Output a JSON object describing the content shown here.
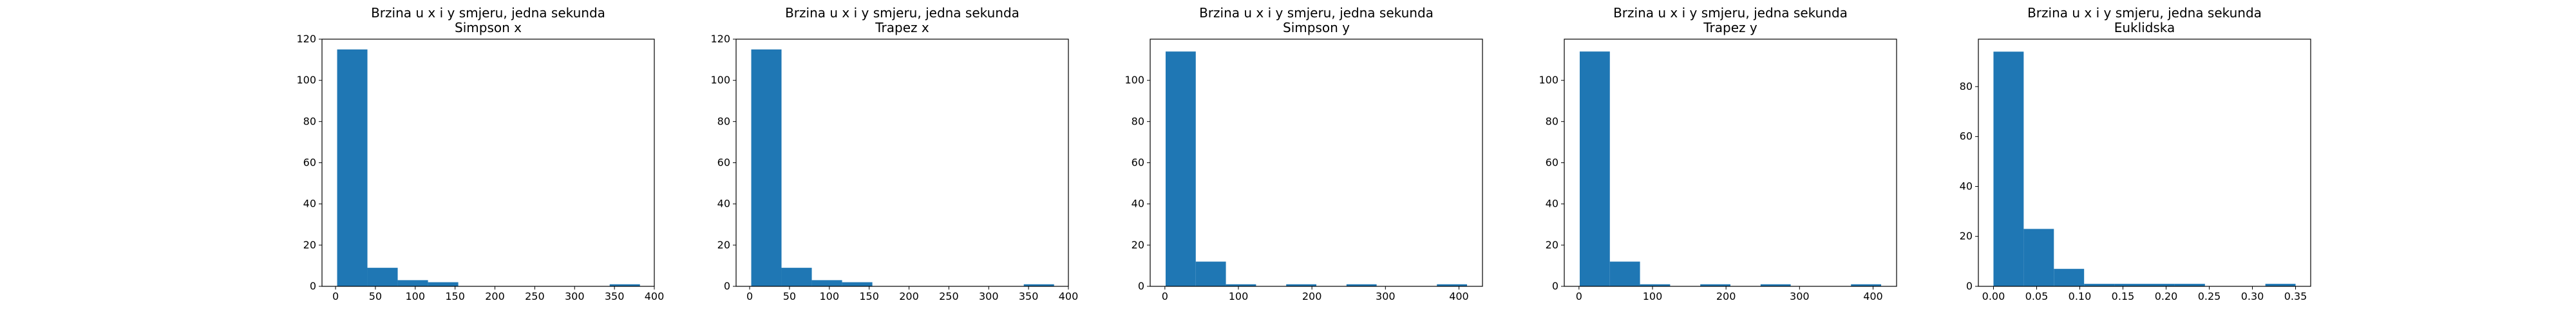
{
  "chart_data": [
    {
      "type": "bar",
      "subtype": "histogram",
      "title": "Brzina u x i y smjeru, jedna sekunda",
      "subtitle": "Simpson x",
      "bin_edges": [
        2,
        40,
        78,
        116,
        154,
        192,
        230,
        268,
        306,
        344,
        382
      ],
      "values": [
        115,
        9,
        3,
        2,
        0,
        0,
        0,
        0,
        0,
        1
      ],
      "xlim": [
        -17,
        400
      ],
      "ylim": [
        0,
        120
      ],
      "xticks": [
        0,
        50,
        100,
        150,
        200,
        250,
        300,
        350,
        400
      ],
      "yticks": [
        0,
        20,
        40,
        60,
        80,
        100,
        120
      ],
      "color": "#1f77b4",
      "grid": false
    },
    {
      "type": "bar",
      "subtype": "histogram",
      "title": "Brzina u x i y smjeru, jedna sekunda",
      "subtitle": "Trapez x",
      "bin_edges": [
        2,
        40,
        78,
        116,
        154,
        192,
        230,
        268,
        306,
        344,
        382
      ],
      "values": [
        115,
        9,
        3,
        2,
        0,
        0,
        0,
        0,
        0,
        1
      ],
      "xlim": [
        -17,
        400
      ],
      "ylim": [
        0,
        120
      ],
      "xticks": [
        0,
        50,
        100,
        150,
        200,
        250,
        300,
        350,
        400
      ],
      "yticks": [
        0,
        20,
        40,
        60,
        80,
        100,
        120
      ],
      "color": "#1f77b4",
      "grid": false
    },
    {
      "type": "bar",
      "subtype": "histogram",
      "title": "Brzina u x i y smjeru, jedna sekunda",
      "subtitle": "Simpson y",
      "bin_edges": [
        1,
        42,
        83,
        124,
        165,
        206,
        247,
        288,
        329,
        370,
        411
      ],
      "values": [
        114,
        12,
        1,
        0,
        1,
        0,
        1,
        0,
        0,
        1
      ],
      "xlim": [
        -20,
        432
      ],
      "ylim": [
        0,
        120
      ],
      "xticks": [
        0,
        100,
        200,
        300,
        400
      ],
      "yticks": [
        0,
        20,
        40,
        60,
        80,
        100
      ],
      "color": "#1f77b4",
      "grid": false
    },
    {
      "type": "bar",
      "subtype": "histogram",
      "title": "Brzina u x i y smjeru, jedna sekunda",
      "subtitle": "Trapez y",
      "bin_edges": [
        1,
        42,
        83,
        124,
        165,
        206,
        247,
        288,
        329,
        370,
        411
      ],
      "values": [
        114,
        12,
        1,
        0,
        1,
        0,
        1,
        0,
        0,
        1
      ],
      "xlim": [
        -20,
        432
      ],
      "ylim": [
        0,
        120
      ],
      "xticks": [
        0,
        100,
        200,
        300,
        400
      ],
      "yticks": [
        0,
        20,
        40,
        60,
        80,
        100
      ],
      "color": "#1f77b4",
      "grid": false
    },
    {
      "type": "bar",
      "subtype": "histogram",
      "title": "Brzina u x i y smjeru, jedna sekunda",
      "subtitle": "Euklidska",
      "bin_edges": [
        0.0,
        0.035,
        0.07,
        0.105,
        0.14,
        0.175,
        0.21,
        0.245,
        0.28,
        0.315,
        0.35
      ],
      "values": [
        94,
        23,
        7,
        1,
        1,
        1,
        1,
        0,
        0,
        1
      ],
      "xlim": [
        -0.0175,
        0.3675
      ],
      "ylim": [
        0,
        99
      ],
      "xticks": [
        0.0,
        0.05,
        0.1,
        0.15,
        0.2,
        0.25,
        0.3,
        0.35
      ],
      "xtick_labels": [
        "0.00",
        "0.05",
        "0.10",
        "0.15",
        "0.20",
        "0.25",
        "0.30",
        "0.35"
      ],
      "yticks": [
        0,
        20,
        40,
        60,
        80
      ],
      "color": "#1f77b4",
      "grid": false
    }
  ]
}
